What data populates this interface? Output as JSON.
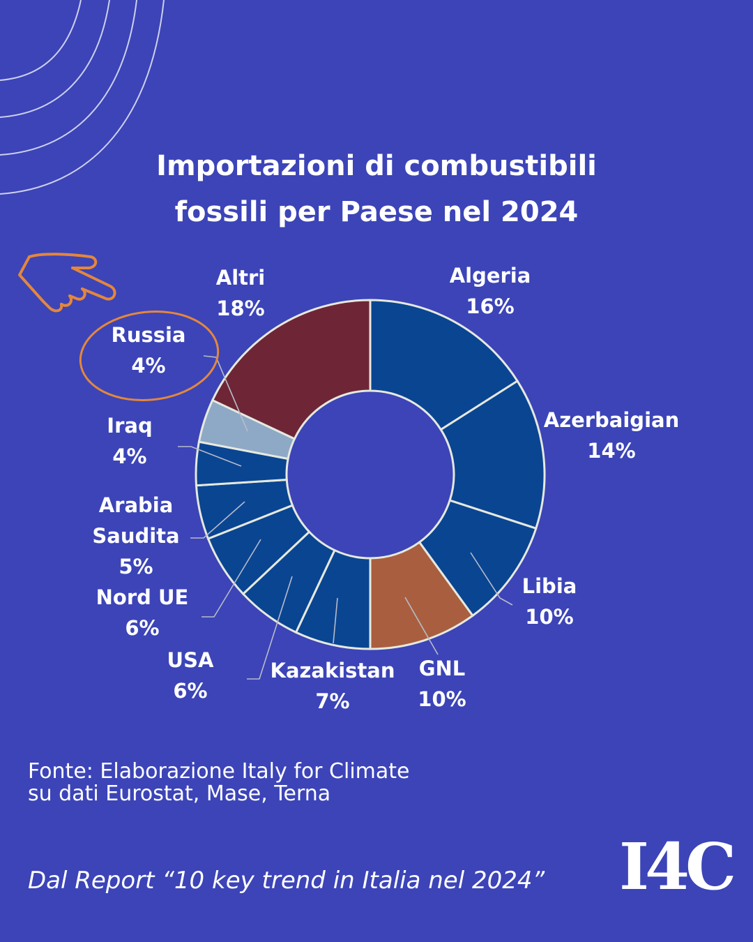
{
  "header": {
    "title_line1": "Importazioni di combustibili",
    "title_line2": "fossili per Paese nel 2024"
  },
  "chart_data": {
    "type": "pie",
    "variant": "donut",
    "slices": [
      {
        "label": "Algeria",
        "value": 16,
        "value_label": "16%",
        "color": "#0a4592"
      },
      {
        "label": "Azerbaigian",
        "value": 14,
        "value_label": "14%",
        "color": "#0a4592"
      },
      {
        "label": "Libia",
        "value": 10,
        "value_label": "10%",
        "color": "#0a4592"
      },
      {
        "label": "GNL",
        "value": 10,
        "value_label": "10%",
        "color": "#a95f3f"
      },
      {
        "label": "Kazakistan",
        "value": 7,
        "value_label": "7%",
        "color": "#0a4592"
      },
      {
        "label": "USA",
        "value": 6,
        "value_label": "6%",
        "color": "#0a4592"
      },
      {
        "label": "Nord UE",
        "value": 6,
        "value_label": "6%",
        "color": "#0a4592"
      },
      {
        "label": "Arabia Saudita",
        "value": 5,
        "value_label": "5%",
        "color": "#0a4592"
      },
      {
        "label": "Iraq",
        "value": 4,
        "value_label": "4%",
        "color": "#0a4592"
      },
      {
        "label": "Russia",
        "value": 4,
        "value_label": "4%",
        "color": "#8ea9c6"
      },
      {
        "label": "Altri",
        "value": 18,
        "value_label": "18%",
        "color": "#6e2637"
      }
    ],
    "highlight": "Russia",
    "highlight_color": "#e4873b"
  },
  "footer": {
    "source_line1": "Fonte: Elaborazione Italy for Climate",
    "source_line2": "su dati Eurostat, Mase, Terna",
    "report": "Dal Report “10 key trend in Italia nel 2024”",
    "logo": "I4C"
  }
}
